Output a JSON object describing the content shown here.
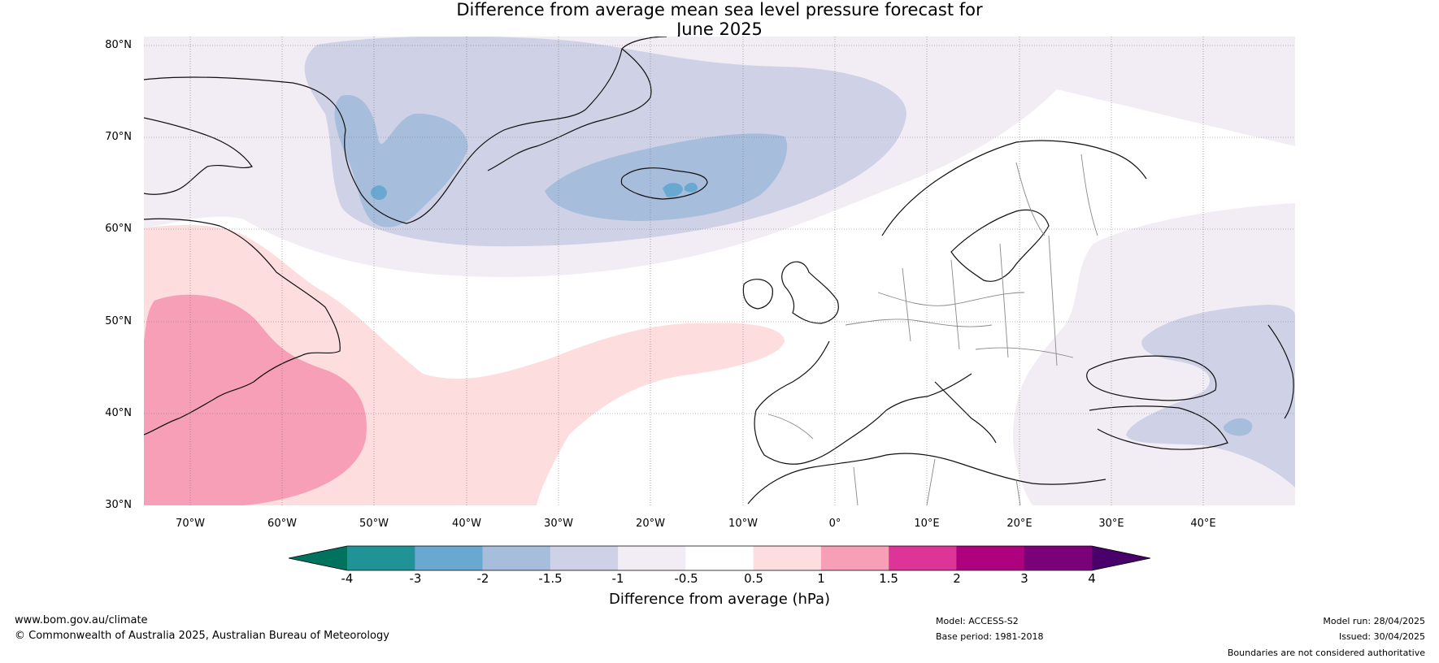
{
  "title": {
    "line1": "Difference from average mean sea level pressure forecast for",
    "line2": "June 2025"
  },
  "map": {
    "latitude_labels": [
      "80°N",
      "70°N",
      "60°N",
      "50°N",
      "40°N",
      "30°N"
    ],
    "longitude_labels": [
      "70°W",
      "60°W",
      "50°W",
      "40°W",
      "30°W",
      "20°W",
      "10°W",
      "0°",
      "10°E",
      "20°E",
      "30°E",
      "40°E"
    ],
    "extent": {
      "lon_min": -75,
      "lon_max": 50,
      "lat_min": 30,
      "lat_max": 81
    },
    "anomaly_regions": [
      {
        "name": "greenland-low-outer",
        "value_range": "-1 to -0.5",
        "color": "#f2ecf5"
      },
      {
        "name": "greenland-low",
        "value_range": "-1.5 to -1",
        "color": "#cfd1e6"
      },
      {
        "name": "greenland-low-core",
        "value_range": "-2 to -1.5",
        "color": "#a7bddc"
      },
      {
        "name": "greenland-low-peak",
        "value_range": "-3 to -2",
        "color": "#68a8d1"
      },
      {
        "name": "atlantic-high",
        "value_range": "0.5 to 1",
        "color": "#fddddd"
      },
      {
        "name": "nova-scotia-high",
        "value_range": "1 to 1.5",
        "color": "#f89fb8"
      },
      {
        "name": "eastern-europe-low",
        "value_range": "-1 to -0.5",
        "color": "#f2ecf5"
      },
      {
        "name": "black-sea-low",
        "value_range": "-1.5 to -1",
        "color": "#cfd1e6"
      },
      {
        "name": "turkey-low-core",
        "value_range": "-2 to -1.5",
        "color": "#a7bddc"
      }
    ]
  },
  "colorbar": {
    "label": "Difference from average (hPa)",
    "ticks": [
      "-4",
      "-3",
      "-2",
      "-1.5",
      "-1",
      "-0.5",
      "0.5",
      "1",
      "1.5",
      "2",
      "3",
      "4"
    ],
    "colors": {
      "under": "#00735f",
      "bins": [
        "#1f9395",
        "#68a8d1",
        "#a7bddc",
        "#cfd1e6",
        "#f2ecf5",
        "#ffffff",
        "#fddddd",
        "#f89fb8",
        "#dd3497",
        "#ae017e",
        "#7a0177"
      ],
      "over": "#49006a"
    }
  },
  "footer": {
    "website": "www.bom.gov.au/climate",
    "copyright": "© Commonwealth of Australia 2025, Australian Bureau of Meteorology",
    "model": "Model: ACCESS-S2",
    "base_period": "Base period: 1981-2018",
    "model_run": "Model run: 28/04/2025",
    "issued": "Issued: 30/04/2025",
    "disclaimer": "Boundaries are not considered authoritative"
  }
}
